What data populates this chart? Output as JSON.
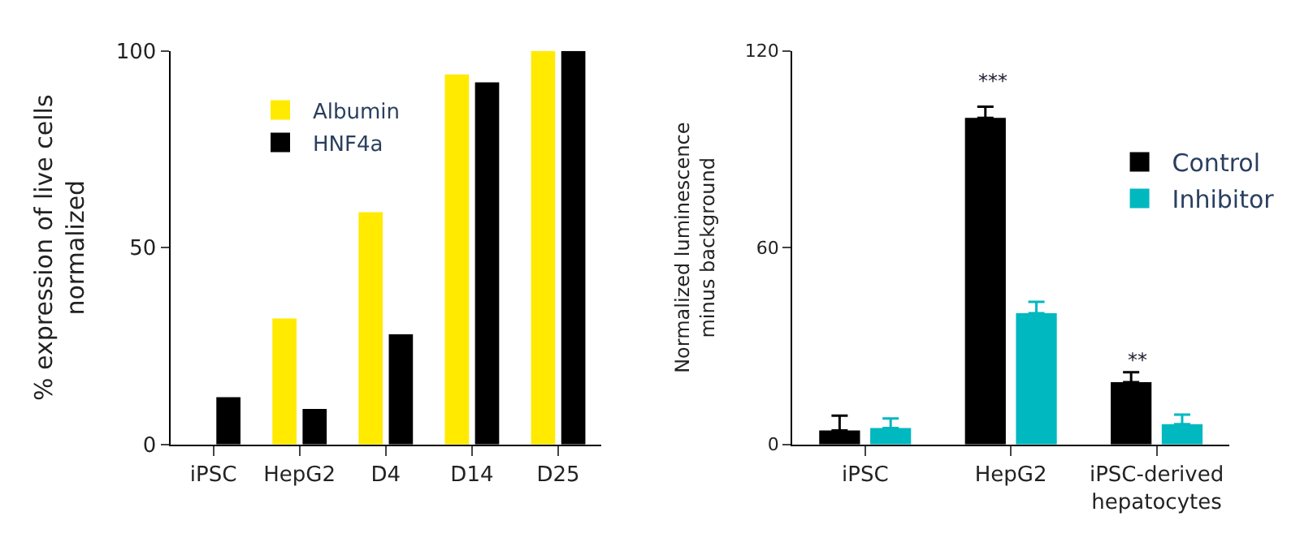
{
  "chart_data": [
    {
      "type": "bar",
      "ylabel": "% expression of live cells normalized",
      "categories": [
        "iPSC",
        "HepG2",
        "D4",
        "D14",
        "D25"
      ],
      "series": [
        {
          "name": "Albumin",
          "color": "#ffea00",
          "values": [
            0,
            32,
            59,
            94,
            100
          ]
        },
        {
          "name": "HNF4a",
          "color": "#000000",
          "values": [
            12,
            9,
            28,
            92,
            100
          ]
        }
      ],
      "ylim": [
        0,
        100
      ],
      "yticks": [
        0,
        50,
        100
      ],
      "legend": "top left"
    },
    {
      "type": "bar",
      "ylabel": "Normalized luminescence minus background",
      "categories": [
        "iPSC",
        "HepG2",
        "iPSC-derived hepatocytes"
      ],
      "series": [
        {
          "name": "Control",
          "color": "#000000",
          "values": [
            4.3,
            99.6,
            19
          ],
          "errors": [
            [
              4.3,
              8.8
            ],
            [
              99.6,
              103
            ],
            [
              19,
              22
            ]
          ]
        },
        {
          "name": "Inhibitor",
          "color": "#00b8c0",
          "values": [
            5,
            40,
            6.2
          ],
          "errors": [
            [
              5,
              7.9
            ],
            [
              40,
              43.5
            ],
            [
              6.2,
              9.1
            ]
          ]
        }
      ],
      "annotations": [
        "***",
        "**"
      ],
      "ylim": [
        0,
        120
      ],
      "yticks": [
        0,
        60,
        120
      ],
      "legend": "right"
    }
  ]
}
